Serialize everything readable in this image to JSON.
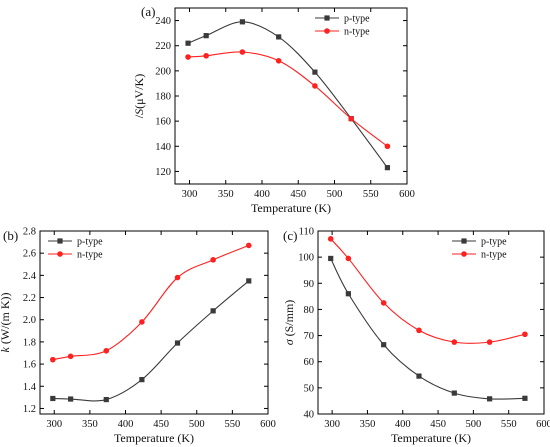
{
  "colors": {
    "p_type": "#3a3a3a",
    "n_type": "#ff2020"
  },
  "chart_data": [
    {
      "id": "a",
      "type": "line",
      "panel_label": "(a)",
      "xlabel": "Temperature (K)",
      "ylabel_italic": "S",
      "ylabel_rest": "(μV/K)",
      "ylabel_prefix": "/",
      "xlim": [
        280,
        600
      ],
      "ylim": [
        110,
        250
      ],
      "xticks": [
        300,
        350,
        400,
        450,
        500,
        550,
        600
      ],
      "yticks": [
        120,
        140,
        160,
        180,
        200,
        220,
        240
      ],
      "xtick_labels": [
        "300",
        "350",
        "400",
        "450",
        "500",
        "550",
        "600"
      ],
      "ytick_labels": [
        "120",
        "140",
        "160",
        "180",
        "200",
        "220",
        "240"
      ],
      "legend_position": "top-right",
      "series": [
        {
          "name": "p-type",
          "marker": "square",
          "x": [
            298,
            323,
            373,
            423,
            473,
            523,
            573
          ],
          "y": [
            222,
            228,
            239,
            227,
            199,
            162,
            123
          ]
        },
        {
          "name": "n-type",
          "marker": "circle",
          "x": [
            298,
            323,
            373,
            423,
            473,
            523,
            573
          ],
          "y": [
            211,
            212,
            215,
            208,
            188,
            162,
            140
          ]
        }
      ]
    },
    {
      "id": "b",
      "type": "line",
      "panel_label": "(b)",
      "xlabel": "Temperature (K)",
      "ylabel_italic": "k",
      "ylabel_rest": " (W/(m K))",
      "ylabel_prefix": "",
      "xlim": [
        280,
        600
      ],
      "ylim": [
        1.15,
        2.8
      ],
      "xticks": [
        300,
        350,
        400,
        450,
        500,
        550,
        600
      ],
      "yticks": [
        1.2,
        1.4,
        1.6,
        1.8,
        2.0,
        2.2,
        2.4,
        2.6,
        2.8
      ],
      "xtick_labels": [
        "300",
        "350",
        "400",
        "450",
        "500",
        "550",
        "600"
      ],
      "ytick_labels": [
        "1.2",
        "1.4",
        "1.6",
        "1.8",
        "2.0",
        "2.2",
        "2.4",
        "2.6",
        "2.8"
      ],
      "legend_position": "top-left",
      "series": [
        {
          "name": "p-type",
          "marker": "square",
          "x": [
            298,
            323,
            373,
            423,
            473,
            523,
            573
          ],
          "y": [
            1.29,
            1.285,
            1.28,
            1.46,
            1.79,
            2.08,
            2.35
          ]
        },
        {
          "name": "n-type",
          "marker": "circle",
          "x": [
            298,
            323,
            373,
            423,
            473,
            523,
            573
          ],
          "y": [
            1.64,
            1.67,
            1.72,
            1.98,
            2.38,
            2.54,
            2.67
          ]
        }
      ]
    },
    {
      "id": "c",
      "type": "line",
      "panel_label": "(c)",
      "xlabel": "Temperature (K)",
      "ylabel_italic": "σ",
      "ylabel_rest": " (S/mm)",
      "ylabel_prefix": "",
      "xlim": [
        280,
        600
      ],
      "ylim": [
        40,
        110
      ],
      "xticks": [
        300,
        350,
        400,
        450,
        500,
        550,
        600
      ],
      "yticks": [
        40,
        50,
        60,
        70,
        80,
        90,
        100,
        110
      ],
      "xtick_labels": [
        "300",
        "350",
        "400",
        "450",
        "500",
        "550",
        "600"
      ],
      "ytick_labels": [
        "40",
        "50",
        "60",
        "70",
        "80",
        "90",
        "100",
        "110"
      ],
      "legend_position": "top-right",
      "series": [
        {
          "name": "p-type",
          "marker": "square",
          "x": [
            298,
            323,
            373,
            423,
            473,
            523,
            573
          ],
          "y": [
            99.5,
            86,
            66.5,
            54.5,
            48,
            45.8,
            46
          ]
        },
        {
          "name": "n-type",
          "marker": "circle",
          "x": [
            298,
            323,
            373,
            423,
            473,
            523,
            573
          ],
          "y": [
            107,
            99.5,
            82.5,
            72,
            67.5,
            67.5,
            70.5
          ]
        }
      ]
    }
  ]
}
